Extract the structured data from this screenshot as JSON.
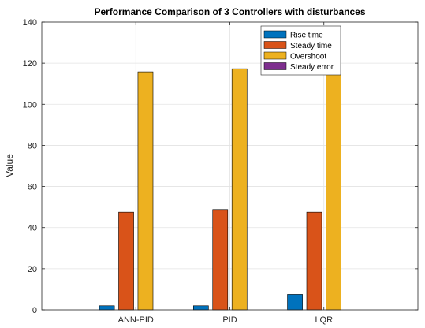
{
  "chart_data": {
    "type": "bar",
    "title": "Performance Comparison of 3 Controllers with disturbances",
    "xlabel": "",
    "ylabel": "Value",
    "categories": [
      "ANN-PID",
      "PID",
      "LQR"
    ],
    "series": [
      {
        "name": "Rise time",
        "color": "#0072BD",
        "values": [
          2,
          2,
          7.5
        ]
      },
      {
        "name": "Steady time",
        "color": "#D95319",
        "values": [
          47.5,
          48.8,
          47.5
        ]
      },
      {
        "name": "Overshoot",
        "color": "#EDB120",
        "values": [
          115.8,
          117.3,
          124.2
        ]
      },
      {
        "name": "Steady error",
        "color": "#7E2F8E",
        "values": [
          0,
          0,
          0
        ]
      }
    ],
    "ylim": [
      0,
      140
    ],
    "yticks": [
      0,
      20,
      40,
      60,
      80,
      100,
      120,
      140
    ],
    "grid": true,
    "legend_position": "top-right"
  }
}
